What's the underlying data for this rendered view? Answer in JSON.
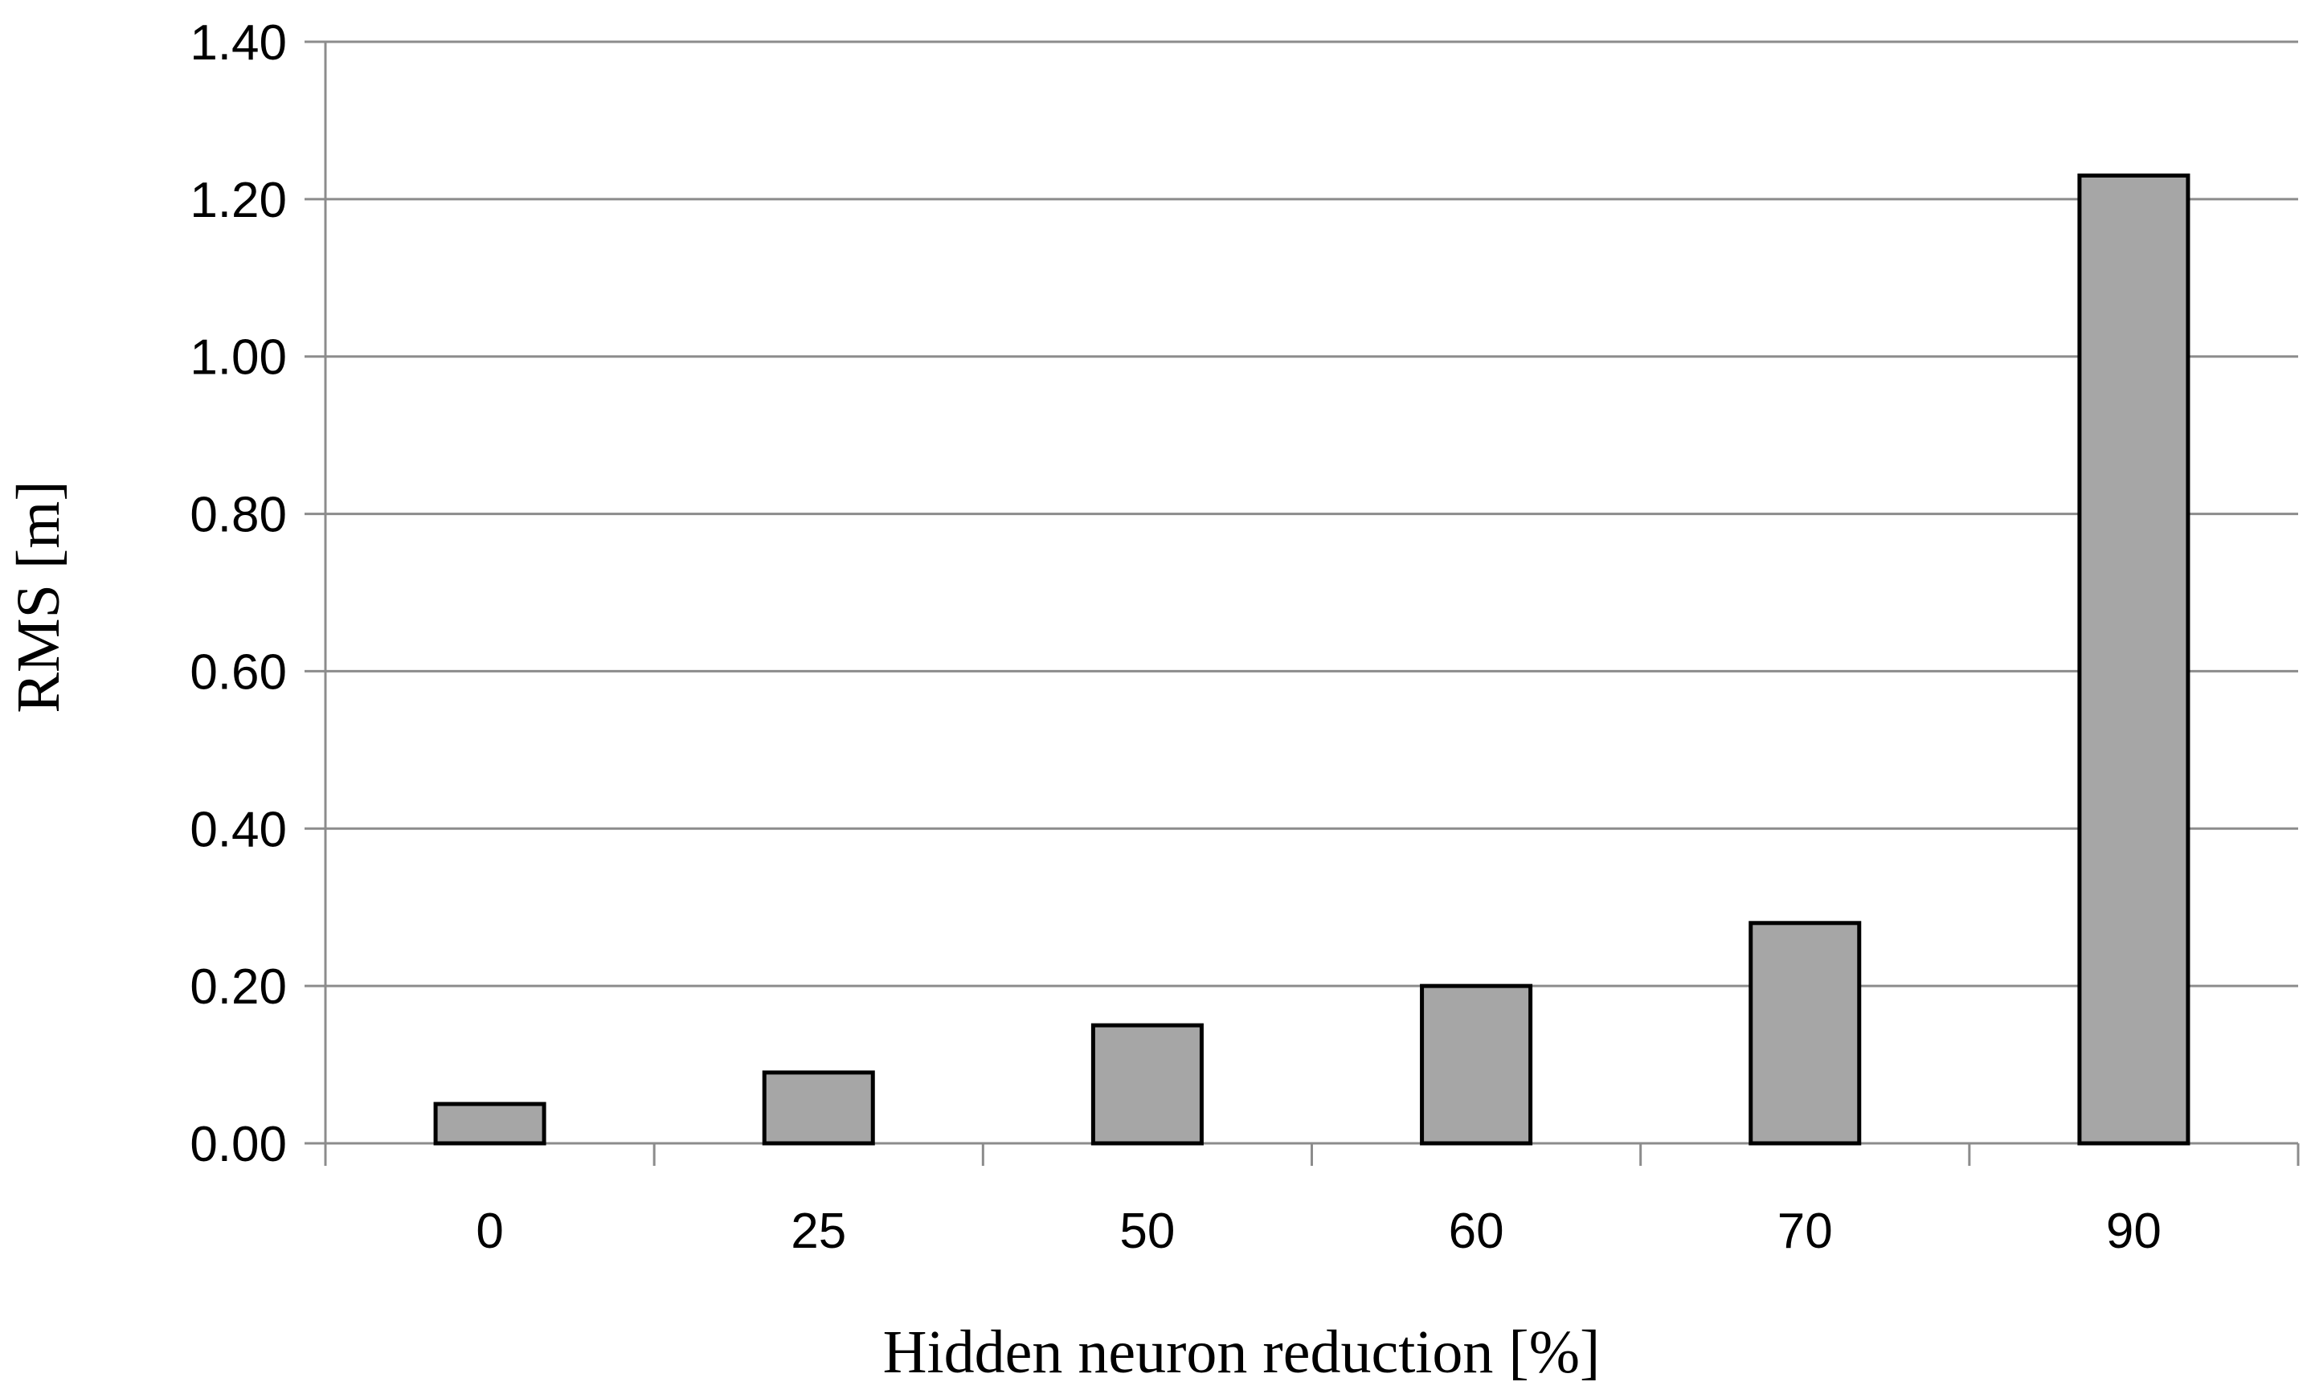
{
  "chart_data": {
    "type": "bar",
    "categories": [
      "0",
      "25",
      "50",
      "60",
      "70",
      "90"
    ],
    "values": [
      0.05,
      0.09,
      0.15,
      0.2,
      0.28,
      1.23
    ],
    "title": "",
    "xlabel": "Hidden neuron reduction [%]",
    "ylabel": "RMS [m]",
    "ylim": [
      0,
      1.4
    ],
    "yticks": [
      "0.00",
      "0.20",
      "0.40",
      "0.60",
      "0.80",
      "1.00",
      "1.20",
      "1.40"
    ],
    "grid": true,
    "legend": "none",
    "bar_color": "#a6a6a6",
    "bar_edge_color": "#000000",
    "grid_color": "#8c8c8c"
  }
}
